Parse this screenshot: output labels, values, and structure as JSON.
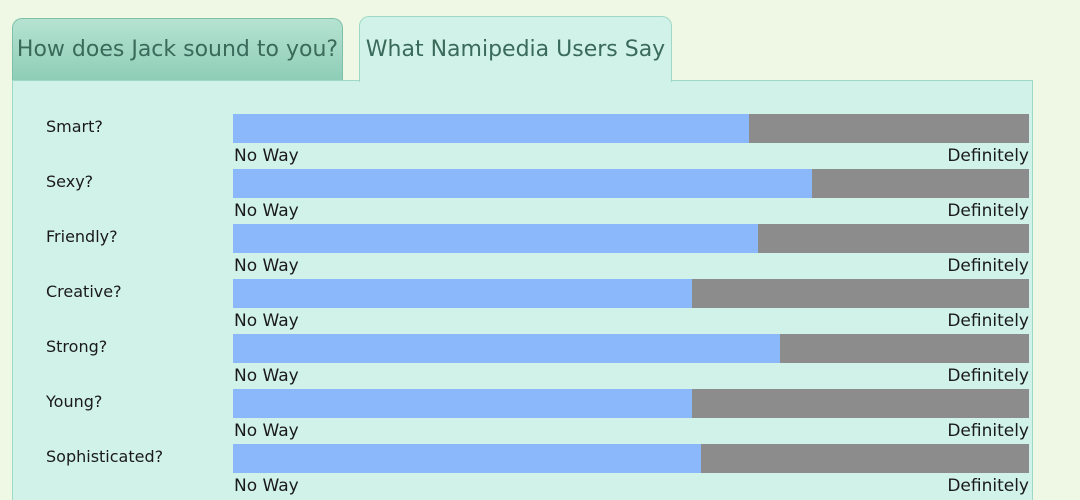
{
  "tabs": [
    {
      "label": "How does Jack sound to you?"
    },
    {
      "label": "What Namipedia Users Say"
    }
  ],
  "scale": {
    "min_label": "No Way",
    "max_label": "Definitely"
  },
  "colors": {
    "fill": "#8ab8fb",
    "track": "#8c8c8c",
    "panel": "#d1f2e8"
  },
  "ratings": [
    {
      "label": "Smart?",
      "fraction": 0.648
    },
    {
      "label": "Sexy?",
      "fraction": 0.728
    },
    {
      "label": "Friendly?",
      "fraction": 0.659
    },
    {
      "label": "Creative?",
      "fraction": 0.577
    },
    {
      "label": "Strong?",
      "fraction": 0.687
    },
    {
      "label": "Young?",
      "fraction": 0.577
    },
    {
      "label": "Sophisticated?",
      "fraction": 0.588
    }
  ]
}
